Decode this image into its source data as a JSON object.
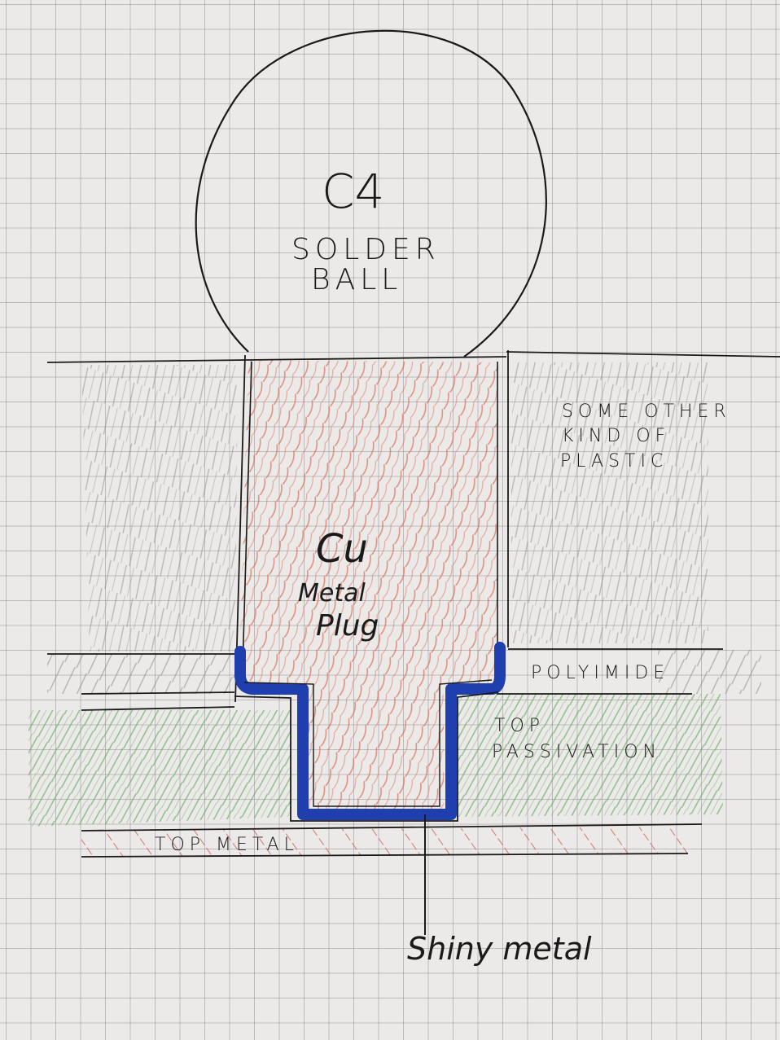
{
  "labels": {
    "c4": "C4",
    "solder": "SOLDER",
    "ball": "BALL",
    "some_other": "SOME OTHER",
    "kind_of": "KIND OF",
    "plastic": "PLASTIC",
    "cu": "Cu",
    "metal": "Metal",
    "plug": "Plug",
    "polyimide": "POLYIMIDE",
    "top_passivation_1": "TOP",
    "top_passivation_2": "PASSIVATION",
    "top_metal": "TOP METAL",
    "shiny_metal": "Shiny metal"
  },
  "colors": {
    "paper": "#eceae8",
    "ink": "#1a1a1a",
    "copper_hatch": "#d9735e",
    "plastic_hatch": "#8d8d90",
    "passivation_hatch": "#6fae6a",
    "metal_hatch": "#c9534a",
    "shiny_metal_liner": "#1f3fae"
  }
}
